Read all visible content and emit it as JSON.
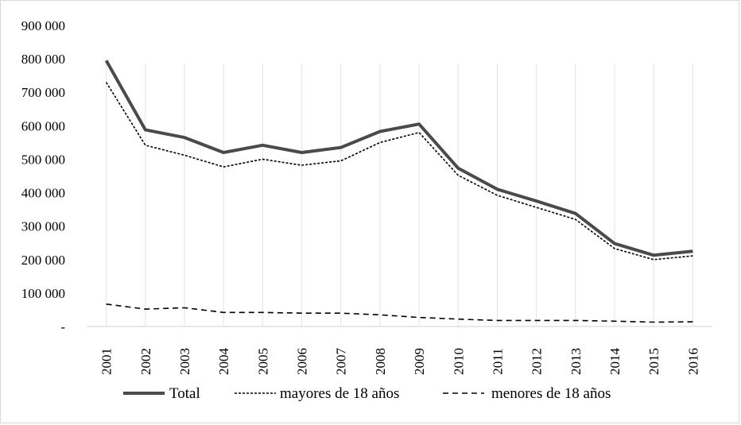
{
  "chart_data": {
    "type": "line",
    "categories": [
      "2001",
      "2002",
      "2003",
      "2004",
      "2005",
      "2006",
      "2007",
      "2008",
      "2009",
      "2010",
      "2011",
      "2012",
      "2013",
      "2014",
      "2015",
      "2016"
    ],
    "ylim": [
      0,
      900000
    ],
    "yticks": [
      0,
      100000,
      200000,
      300000,
      400000,
      500000,
      600000,
      700000,
      800000,
      900000
    ],
    "ytick_labels": [
      "-",
      "100 000",
      "200 000",
      "300 000",
      "400 000",
      "500 000",
      "600 000",
      "700 000",
      "800 000",
      "900 000"
    ],
    "grid": "vertical",
    "legend_position": "bottom",
    "series": [
      {
        "name": "Total",
        "style": "solid-thick",
        "color": "#4a4a4a",
        "values": [
          795000,
          588000,
          565000,
          520000,
          542000,
          520000,
          535000,
          583000,
          605000,
          473000,
          410000,
          375000,
          338000,
          248000,
          213000,
          225000
        ]
      },
      {
        "name": "mayores de 18 años",
        "style": "dotted",
        "color": "#000000",
        "values": [
          730000,
          542000,
          512000,
          477000,
          500000,
          482000,
          495000,
          550000,
          580000,
          452000,
          392000,
          356000,
          320000,
          233000,
          200000,
          211000
        ]
      },
      {
        "name": "menores de 18 años",
        "style": "dashed",
        "color": "#000000",
        "values": [
          67000,
          52000,
          56000,
          42000,
          42000,
          40000,
          40000,
          35000,
          27000,
          22000,
          18000,
          18000,
          18000,
          16000,
          13000,
          14000
        ]
      }
    ]
  }
}
